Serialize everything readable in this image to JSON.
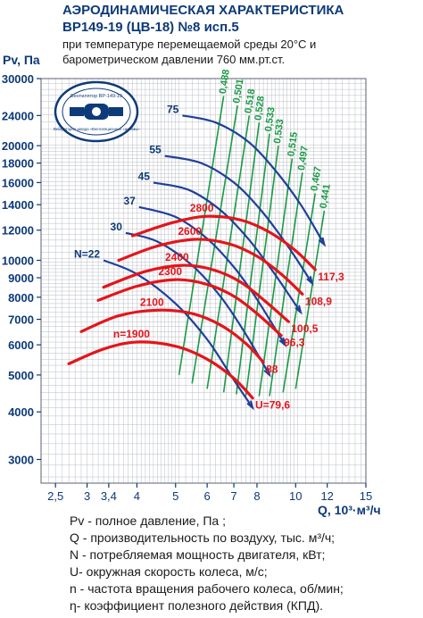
{
  "header": {
    "title_line1": "АЭРОДИНАМИЧЕСКАЯ ХАРАКТЕРИСТИКА",
    "title_line2": "ВР149-19 (ЦВ-18) №8 исп.5",
    "subtitle_line1": "при температуре перемещаемой среды 20°С и",
    "subtitle_line2": "барометрическом давлении 760 мм.рт.ст."
  },
  "logo": {
    "text_top": "Вентилятор ВР-149-19",
    "text_bottom": "Лаборатория завода «Вентиляционные системы»"
  },
  "legend": [
    "Pv - полное давление, Па ;",
    "Q - производительность по воздуху, тыс. м³/ч;",
    "N - потребляемая мощность двигателя, кВт;",
    "U- окружная скорость колеса, м/с;",
    "n - частота вращения рабочего колеса, об/мин;",
    "η- коэффициент полезного действия (КПД)."
  ],
  "chart_data": {
    "type": "line",
    "xlabel": "Q, 10³·м³/ч",
    "ylabel": "Pv, Па",
    "xscale": "log",
    "yscale": "log",
    "xlim": [
      2.3,
      15
    ],
    "ylim": [
      2600,
      30000
    ],
    "grid": true,
    "x_ticks": [
      2.5,
      3,
      3.4,
      4,
      5,
      6,
      7,
      8,
      10,
      12,
      15
    ],
    "x_tick_labels": [
      "2,5",
      "3",
      "3,4",
      "4",
      "5",
      "6",
      "7",
      "8",
      "10",
      "12",
      "15"
    ],
    "y_ticks": [
      3000,
      4000,
      5000,
      6000,
      7000,
      8000,
      9000,
      10000,
      12000,
      14000,
      16000,
      18000,
      20000,
      24000,
      30000
    ],
    "series": [
      {
        "kind": "speed",
        "name": "n=1900",
        "label_end": "U=79,6",
        "x": [
          2.7,
          3.3,
          4.0,
          5.0,
          6.0,
          7.0,
          7.8
        ],
        "y": [
          5350,
          5850,
          6100,
          5950,
          5500,
          4900,
          4350
        ]
      },
      {
        "kind": "speed",
        "name": "2100",
        "label_end": "88",
        "x": [
          2.9,
          3.6,
          4.5,
          5.5,
          6.5,
          7.5,
          8.3
        ],
        "y": [
          6500,
          7150,
          7400,
          7250,
          6750,
          6050,
          5400
        ]
      },
      {
        "kind": "speed",
        "name": "2300",
        "label_end": "96,3",
        "x": [
          3.2,
          4.0,
          5.0,
          6.0,
          7.0,
          8.0,
          9.2
        ],
        "y": [
          7850,
          8550,
          8900,
          8650,
          8050,
          7250,
          6350
        ]
      },
      {
        "kind": "speed",
        "name": "2400",
        "label_end": "100,5",
        "x": [
          3.3,
          4.2,
          5.2,
          6.2,
          7.3,
          8.4,
          9.6
        ],
        "y": [
          8500,
          9350,
          9700,
          9450,
          8750,
          7800,
          6900
        ]
      },
      {
        "kind": "speed",
        "name": "2600",
        "label_end": "108,9",
        "x": [
          3.6,
          4.5,
          5.6,
          6.8,
          8.0,
          9.2,
          10.4
        ],
        "y": [
          10000,
          10900,
          11350,
          11050,
          10250,
          9200,
          8150
        ]
      },
      {
        "kind": "speed",
        "name": "2800",
        "label_end": "117,3",
        "x": [
          3.9,
          4.9,
          6.0,
          7.3,
          8.6,
          10.0,
          11.2
        ],
        "y": [
          11600,
          12550,
          13050,
          12750,
          11850,
          10600,
          9450
        ]
      },
      {
        "kind": "power",
        "name": "N=22",
        "x": [
          3.3,
          4.0,
          5.0,
          6.0,
          7.0,
          7.8
        ],
        "y": [
          10000,
          9200,
          7700,
          6200,
          4850,
          4100
        ]
      },
      {
        "kind": "power",
        "name": "30",
        "x": [
          3.75,
          4.5,
          5.5,
          6.5,
          7.5,
          8.6
        ],
        "y": [
          11800,
          11200,
          9700,
          8000,
          6400,
          5000
        ]
      },
      {
        "kind": "power",
        "name": "37",
        "x": [
          4.05,
          5.0,
          6.0,
          7.0,
          8.0,
          9.4
        ],
        "y": [
          13800,
          13000,
          11400,
          9600,
          7900,
          6000
        ]
      },
      {
        "kind": "power",
        "name": "45",
        "x": [
          4.4,
          5.4,
          6.5,
          7.6,
          8.8,
          10.3
        ],
        "y": [
          16000,
          15300,
          13500,
          11400,
          9300,
          7300
        ]
      },
      {
        "kind": "power",
        "name": "55",
        "x": [
          4.7,
          5.8,
          7.0,
          8.2,
          9.5,
          11.0
        ],
        "y": [
          18800,
          18000,
          16000,
          13500,
          11000,
          8700
        ]
      },
      {
        "kind": "power",
        "name": "75",
        "x": [
          5.2,
          6.3,
          7.6,
          8.9,
          10.3,
          11.8
        ],
        "y": [
          24000,
          23000,
          20500,
          17200,
          14000,
          11000
        ]
      },
      {
        "kind": "efficiency",
        "name": "0,488",
        "x": [
          5.1,
          6.6
        ],
        "y": [
          5000,
          27000
        ]
      },
      {
        "kind": "efficiency",
        "name": "0,501",
        "x": [
          5.5,
          7.15
        ],
        "y": [
          4750,
          25500
        ]
      },
      {
        "kind": "efficiency",
        "name": "0,518",
        "x": [
          6.0,
          7.65
        ],
        "y": [
          4600,
          24000
        ]
      },
      {
        "kind": "efficiency",
        "name": "0,528",
        "x": [
          6.6,
          8.1
        ],
        "y": [
          4500,
          23000
        ]
      },
      {
        "kind": "efficiency",
        "name": "0,533",
        "x": [
          7.1,
          8.6
        ],
        "y": [
          4450,
          21500
        ]
      },
      {
        "kind": "efficiency",
        "name": "0,533",
        "x": [
          7.5,
          9.05
        ],
        "y": [
          4400,
          20000
        ]
      },
      {
        "kind": "efficiency",
        "name": "0,515",
        "x": [
          8.1,
          9.8
        ],
        "y": [
          4400,
          18500
        ]
      },
      {
        "kind": "efficiency",
        "name": "0,497",
        "x": [
          8.6,
          10.4
        ],
        "y": [
          4400,
          17000
        ]
      },
      {
        "kind": "efficiency",
        "name": "0,467",
        "x": [
          9.3,
          11.2
        ],
        "y": [
          4500,
          15000
        ]
      },
      {
        "kind": "efficiency",
        "name": "0,441",
        "x": [
          10.0,
          11.8
        ],
        "y": [
          4600,
          13500
        ]
      }
    ]
  },
  "colors": {
    "speed": "#e3151b",
    "power": "#1f3f99",
    "efficiency": "#1a9a45",
    "grid": "#b9bdc6",
    "text": "#0d3a78"
  }
}
